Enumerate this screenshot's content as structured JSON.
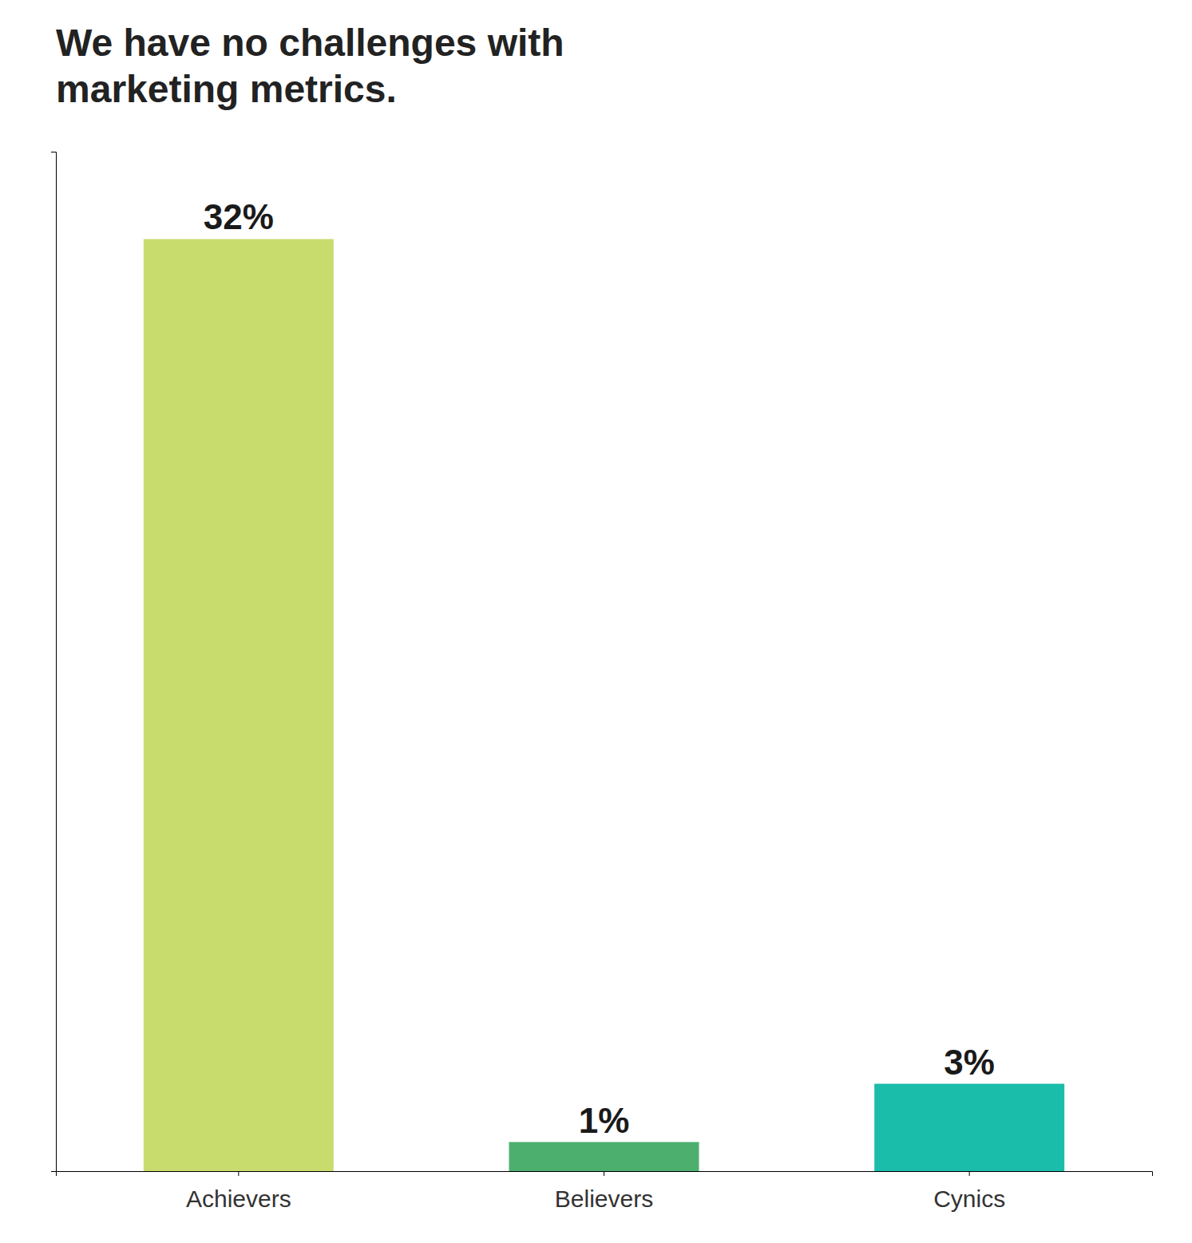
{
  "chart_data": {
    "type": "bar",
    "title": "We have no challenges with\nmarketing metrics.",
    "categories": [
      "Achievers",
      "Believers",
      "Cynics"
    ],
    "values": [
      32,
      1,
      3
    ],
    "value_labels": [
      "32%",
      "1%",
      "3%"
    ],
    "colors": [
      "#c8dc6e",
      "#4caf6e",
      "#1abcaa"
    ],
    "ylim": [
      0,
      35
    ],
    "data_labels": true,
    "tick_labels": "x",
    "grid": false
  }
}
